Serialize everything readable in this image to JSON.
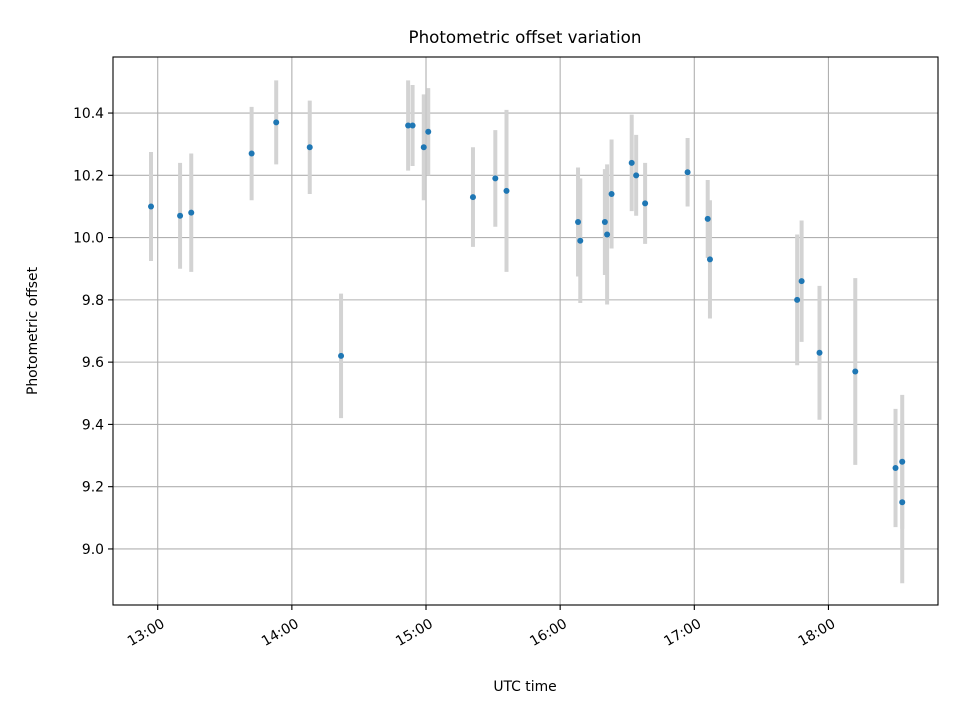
{
  "chart_data": {
    "type": "scatter",
    "title": "Photometric offset variation",
    "xlabel": "UTC time",
    "ylabel": "Photometric offset",
    "x_axis": {
      "kind": "time",
      "range": [
        "12:40",
        "18:49"
      ],
      "ticks": [
        "13:00",
        "14:00",
        "15:00",
        "16:00",
        "17:00",
        "18:00"
      ]
    },
    "y_axis": {
      "range": [
        8.82,
        10.58
      ],
      "ticks": [
        "9.0",
        "9.2",
        "9.4",
        "9.6",
        "9.8",
        "10.0",
        "10.2",
        "10.4"
      ]
    },
    "grid": true,
    "legend": "none",
    "colors": {
      "points": "#1f77b4",
      "error_bars": "#d3d3d3"
    },
    "points": [
      {
        "x": "12:57",
        "y": 10.1,
        "err": 0.175
      },
      {
        "x": "13:10",
        "y": 10.07,
        "err": 0.17
      },
      {
        "x": "13:15",
        "y": 10.08,
        "err": 0.19
      },
      {
        "x": "13:42",
        "y": 10.27,
        "err": 0.15
      },
      {
        "x": "13:53",
        "y": 10.37,
        "err": 0.135
      },
      {
        "x": "14:08",
        "y": 10.29,
        "err": 0.15
      },
      {
        "x": "14:22",
        "y": 9.62,
        "err": 0.2
      },
      {
        "x": "14:52",
        "y": 10.36,
        "err": 0.145
      },
      {
        "x": "14:54",
        "y": 10.36,
        "err": 0.13
      },
      {
        "x": "14:59",
        "y": 10.29,
        "err": 0.17
      },
      {
        "x": "15:01",
        "y": 10.34,
        "err": 0.14
      },
      {
        "x": "15:21",
        "y": 10.13,
        "err": 0.16
      },
      {
        "x": "15:31",
        "y": 10.19,
        "err": 0.155
      },
      {
        "x": "15:36",
        "y": 10.15,
        "err": 0.26
      },
      {
        "x": "16:08",
        "y": 10.05,
        "err": 0.175
      },
      {
        "x": "16:09",
        "y": 9.99,
        "err": 0.2
      },
      {
        "x": "16:20",
        "y": 10.05,
        "err": 0.17
      },
      {
        "x": "16:21",
        "y": 10.01,
        "err": 0.225
      },
      {
        "x": "16:23",
        "y": 10.14,
        "err": 0.175
      },
      {
        "x": "16:32",
        "y": 10.24,
        "err": 0.155
      },
      {
        "x": "16:34",
        "y": 10.2,
        "err": 0.13
      },
      {
        "x": "16:38",
        "y": 10.11,
        "err": 0.13
      },
      {
        "x": "16:57",
        "y": 10.21,
        "err": 0.11
      },
      {
        "x": "17:06",
        "y": 10.06,
        "err": 0.125
      },
      {
        "x": "17:07",
        "y": 9.93,
        "err": 0.19
      },
      {
        "x": "17:46",
        "y": 9.8,
        "err": 0.21
      },
      {
        "x": "17:48",
        "y": 9.86,
        "err": 0.195
      },
      {
        "x": "17:56",
        "y": 9.63,
        "err": 0.215
      },
      {
        "x": "18:12",
        "y": 9.57,
        "err": 0.3
      },
      {
        "x": "18:30",
        "y": 9.26,
        "err": 0.19
      },
      {
        "x": "18:33",
        "y": 9.28,
        "err": 0.215
      },
      {
        "x": "18:33",
        "y": 9.15,
        "err": 0.26
      }
    ]
  }
}
